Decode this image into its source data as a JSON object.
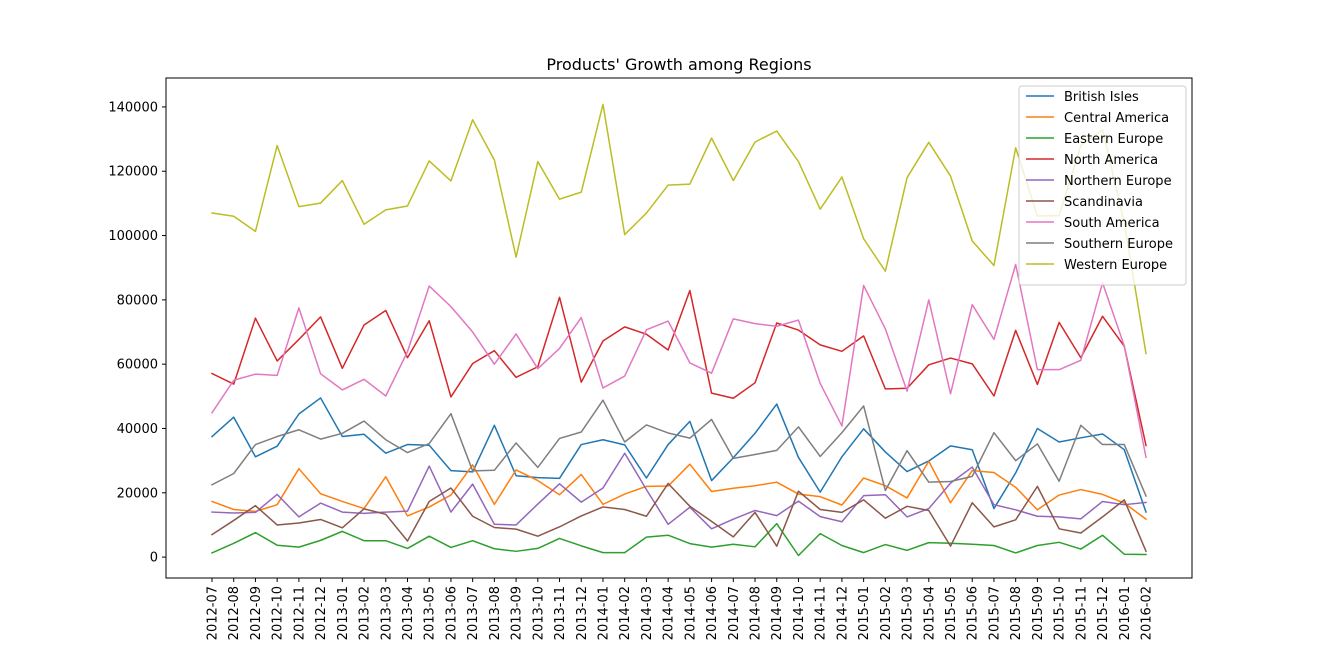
{
  "chart_data": {
    "type": "line",
    "title": "Products' Growth among Regions",
    "xlabel": "",
    "ylabel": "",
    "ylim": [
      -6500,
      149000
    ],
    "yticks": [
      0,
      20000,
      40000,
      60000,
      80000,
      100000,
      120000,
      140000
    ],
    "ytick_labels": [
      "0",
      "20000",
      "40000",
      "60000",
      "80000",
      "100000",
      "120000",
      "140000"
    ],
    "grid": false,
    "legend_position": "top-right",
    "categories": [
      "2012-07",
      "2012-08",
      "2012-09",
      "2012-10",
      "2012-11",
      "2012-12",
      "2013-01",
      "2013-02",
      "2013-03",
      "2013-04",
      "2013-05",
      "2013-06",
      "2013-07",
      "2013-08",
      "2013-09",
      "2013-10",
      "2013-11",
      "2013-12",
      "2014-01",
      "2014-02",
      "2014-03",
      "2014-04",
      "2014-05",
      "2014-06",
      "2014-07",
      "2014-08",
      "2014-09",
      "2014-10",
      "2014-11",
      "2014-12",
      "2015-01",
      "2015-02",
      "2015-03",
      "2015-04",
      "2015-05",
      "2015-06",
      "2015-07",
      "2015-08",
      "2015-09",
      "2015-10",
      "2015-11",
      "2015-12",
      "2016-01",
      "2016-02"
    ],
    "series": [
      {
        "name": "British Isles",
        "color": "#1f77b4",
        "values": [
          37500,
          43500,
          31200,
          34500,
          44500,
          49500,
          37500,
          38200,
          32300,
          35000,
          34800,
          26900,
          26500,
          41000,
          25300,
          24700,
          24500,
          35000,
          36500,
          34900,
          24600,
          35000,
          42200,
          23800,
          30900,
          38500,
          47600,
          31000,
          20200,
          31200,
          39900,
          32700,
          26600,
          29900,
          34600,
          33400,
          15100,
          26200,
          40000,
          35800,
          37100,
          38300,
          33400,
          14000
        ]
      },
      {
        "name": "Central America",
        "color": "#ff7f0e",
        "values": [
          17300,
          14800,
          14200,
          16300,
          27500,
          19700,
          17300,
          15100,
          25000,
          12800,
          15600,
          19300,
          28700,
          16400,
          27100,
          23800,
          19400,
          25700,
          16400,
          19600,
          22000,
          22100,
          28900,
          20400,
          21400,
          22200,
          23300,
          19600,
          18800,
          16200,
          24600,
          22200,
          18400,
          29800,
          16900,
          26900,
          26300,
          21700,
          14700,
          19300,
          21000,
          19500,
          16800,
          11800
        ]
      },
      {
        "name": "Eastern Europe",
        "color": "#2ca02c",
        "values": [
          1300,
          4300,
          7600,
          3700,
          3100,
          5200,
          8000,
          5100,
          5100,
          2700,
          6500,
          3000,
          5100,
          2600,
          1800,
          2700,
          5800,
          3500,
          1400,
          1400,
          6200,
          6800,
          4200,
          3100,
          4000,
          3200,
          10400,
          500,
          7300,
          3600,
          1400,
          3900,
          2100,
          4500,
          4300,
          4000,
          3600,
          1300,
          3600,
          4600,
          2500,
          6800,
          900,
          800
        ]
      },
      {
        "name": "North America",
        "color": "#d62728",
        "values": [
          57100,
          53800,
          74300,
          61000,
          67700,
          74700,
          58700,
          72200,
          76700,
          62000,
          73500,
          49800,
          60200,
          64200,
          55900,
          59200,
          80800,
          54400,
          67200,
          71600,
          69300,
          64400,
          82900,
          51000,
          49400,
          54200,
          72800,
          70600,
          66000,
          64000,
          68800,
          52300,
          52500,
          59800,
          61900,
          60100,
          50100,
          70500,
          53700,
          73000,
          62000,
          74900,
          65600,
          34700
        ]
      },
      {
        "name": "Northern Europe",
        "color": "#9467bd",
        "values": [
          14000,
          13700,
          13900,
          19500,
          12500,
          16800,
          14000,
          13600,
          14000,
          14300,
          28300,
          14000,
          22700,
          10200,
          10000,
          16500,
          22800,
          17100,
          21500,
          32300,
          21000,
          10200,
          15500,
          8800,
          11800,
          14500,
          12900,
          17400,
          12600,
          11000,
          19100,
          19400,
          12500,
          15100,
          23000,
          28000,
          16300,
          14700,
          12700,
          12500,
          11900,
          17300,
          16300,
          17000
        ]
      },
      {
        "name": "Scandinavia",
        "color": "#8c564b",
        "values": [
          7000,
          11400,
          16000,
          10000,
          10600,
          11700,
          9100,
          15000,
          13300,
          5000,
          17300,
          21500,
          12700,
          9200,
          8700,
          6500,
          9400,
          12800,
          15600,
          14800,
          12700,
          22900,
          15800,
          11100,
          6300,
          13900,
          3400,
          20500,
          14800,
          13900,
          17800,
          12100,
          15800,
          14500,
          3400,
          16900,
          9400,
          11600,
          22000,
          8800,
          7500,
          12500,
          17800,
          1800
        ]
      },
      {
        "name": "South America",
        "color": "#e377c2",
        "values": [
          44900,
          55000,
          56900,
          56500,
          77500,
          57000,
          52000,
          55300,
          50100,
          63900,
          84300,
          77900,
          70000,
          60000,
          69400,
          58600,
          64900,
          74500,
          52600,
          56300,
          70700,
          73400,
          60400,
          57200,
          74100,
          72600,
          71800,
          73700,
          54000,
          40800,
          84500,
          71000,
          51600,
          80000,
          50800,
          78500,
          67700,
          91000,
          58300,
          58300,
          61200,
          85300,
          65700,
          31000
        ]
      },
      {
        "name": "Southern Europe",
        "color": "#7f7f7f",
        "values": [
          22500,
          26000,
          35000,
          37500,
          39600,
          36700,
          38500,
          42300,
          36500,
          32500,
          35300,
          44600,
          26800,
          27000,
          35500,
          27900,
          36900,
          38900,
          48800,
          35800,
          41100,
          38600,
          37000,
          42800,
          30700,
          31900,
          33200,
          40500,
          31300,
          38700,
          47000,
          20700,
          33100,
          23300,
          23500,
          25100,
          38700,
          30000,
          35200,
          23600,
          41000,
          35000,
          35000,
          19000
        ]
      },
      {
        "name": "Western Europe",
        "color": "#bcbd22",
        "values": [
          107000,
          106000,
          101300,
          128000,
          109000,
          110100,
          117100,
          103500,
          108000,
          109200,
          123200,
          117000,
          136000,
          123500,
          93300,
          123000,
          111300,
          113500,
          140800,
          100300,
          107000,
          115700,
          116000,
          130300,
          117100,
          129100,
          132500,
          123000,
          108200,
          118200,
          99000,
          88900,
          118000,
          129000,
          118500,
          98300,
          90700,
          127300,
          106100,
          106200,
          128000,
          132900,
          104000,
          63300
        ]
      }
    ]
  }
}
